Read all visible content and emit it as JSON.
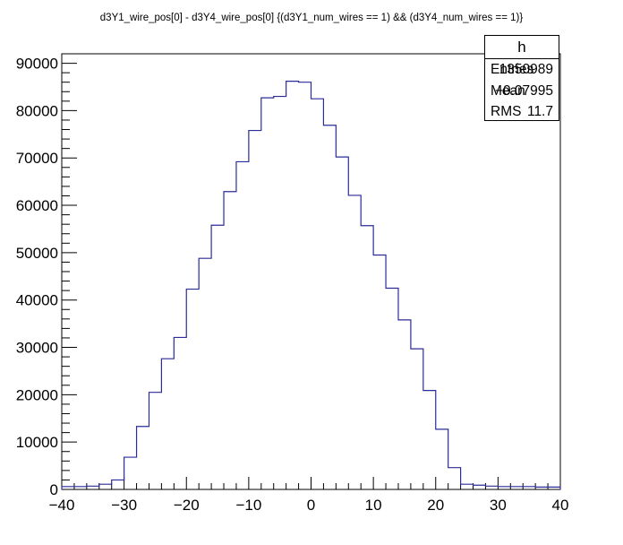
{
  "page": {
    "title": "d3Y1_wire_pos[0] - d3Y4_wire_pos[0]  {(d3Y1_num_wires == 1) && (d3Y4_num_wires == 1)}"
  },
  "stats": {
    "name": "h",
    "entries_label": "Entries",
    "entries_value": "1350989",
    "mean_label": "Mean",
    "mean_value": "−0.07995",
    "rms_label": "RMS",
    "rms_value": "11.7"
  },
  "colors": {
    "histogram_line": "#2b2b9a",
    "axes": "#000000",
    "background": "#ffffff"
  },
  "chart_data": {
    "type": "histogram",
    "title": "d3Y1_wire_pos[0] - d3Y4_wire_pos[0]  {(d3Y1_num_wires == 1) && (d3Y4_num_wires == 1)}",
    "xlabel": "",
    "ylabel": "",
    "xlim": [
      -40,
      40
    ],
    "ylim": [
      0,
      92000
    ],
    "bin_edges": [
      -40,
      -38,
      -36,
      -34,
      -32,
      -30,
      -28,
      -26,
      -24,
      -22,
      -20,
      -18,
      -16,
      -14,
      -12,
      -10,
      -8,
      -6,
      -4,
      -2,
      0,
      2,
      4,
      6,
      8,
      10,
      12,
      14,
      16,
      18,
      20,
      22,
      24,
      26,
      28,
      30,
      32,
      34,
      36,
      38,
      40
    ],
    "values": [
      600,
      600,
      700,
      1100,
      2000,
      6800,
      13300,
      20500,
      27600,
      32100,
      42300,
      48800,
      55800,
      62900,
      69200,
      75800,
      82700,
      83000,
      86200,
      86000,
      82500,
      76900,
      70200,
      62100,
      55700,
      49500,
      42500,
      35800,
      29700,
      20900,
      12700,
      4600,
      1100,
      900,
      700,
      600,
      600,
      600,
      500,
      500
    ],
    "x_ticks": [
      -40,
      -30,
      -20,
      -10,
      0,
      10,
      20,
      30,
      40
    ],
    "x_tick_labels": [
      "−40",
      "−30",
      "−20",
      "−10",
      "0",
      "10",
      "20",
      "30",
      "40"
    ],
    "y_ticks": [
      0,
      10000,
      20000,
      30000,
      40000,
      50000,
      60000,
      70000,
      80000,
      90000
    ],
    "y_tick_labels": [
      "0",
      "10000",
      "20000",
      "30000",
      "40000",
      "50000",
      "60000",
      "70000",
      "80000",
      "90000"
    ],
    "grid": false,
    "legend": "stats box top-right"
  }
}
